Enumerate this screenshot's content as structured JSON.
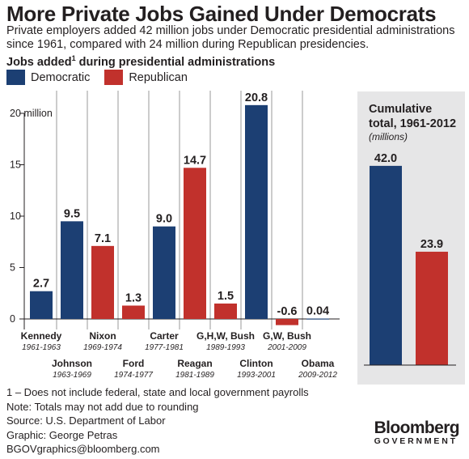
{
  "title": "More Private Jobs Gained Under Democrats",
  "subtitle": "Private employers added 42 million jobs under Democratic presidential administrations since 1961, compared with 24 million during Republican presidencies.",
  "chart_label": "Jobs added",
  "chart_label_sup": "1",
  "chart_label_suffix": " during presidential administrations",
  "legend": [
    {
      "label": "Democratic",
      "color": "#1c3f73"
    },
    {
      "label": "Republican",
      "color": "#c1312c"
    }
  ],
  "chart_data": [
    {
      "type": "bar",
      "title": "Jobs added during presidential administrations",
      "ylabel": "",
      "ylim": [
        -1,
        21
      ],
      "y_ticks": [
        {
          "value": 0,
          "label": "0"
        },
        {
          "value": 5,
          "label": "5"
        },
        {
          "value": 10,
          "label": "10"
        },
        {
          "value": 15,
          "label": "15"
        },
        {
          "value": 20,
          "label": "20 million"
        }
      ],
      "grid": "vertical separators",
      "categories": [
        "Kennedy",
        "Johnson",
        "Nixon",
        "Ford",
        "Carter",
        "Reagan",
        "G,H,W, Bush",
        "Clinton",
        "G,W, Bush",
        "Obama"
      ],
      "years": [
        "1961-1963",
        "1963-1969",
        "1969-1974",
        "1974-1977",
        "1977-1981",
        "1981-1989",
        "1989-1993",
        "1993-2001",
        "2001-2009",
        "2009-2012"
      ],
      "values": [
        2.7,
        9.5,
        7.1,
        1.3,
        9.0,
        14.7,
        1.5,
        20.8,
        -0.6,
        0.04
      ],
      "value_labels": [
        "2.7",
        "9.5",
        "7.1",
        "1.3",
        "9.0",
        "14.7",
        "1.5",
        "20.8",
        "-0.6",
        "0.04"
      ],
      "party": [
        "Democratic",
        "Democratic",
        "Republican",
        "Republican",
        "Democratic",
        "Republican",
        "Republican",
        "Democratic",
        "Republican",
        "Democratic"
      ]
    },
    {
      "type": "bar",
      "title": "Cumulative total, 1961-2012",
      "subtitle": "(millions)",
      "categories": [
        "Democratic",
        "Republican"
      ],
      "values": [
        42.0,
        23.9
      ],
      "value_labels": [
        "42.0",
        "23.9"
      ]
    }
  ],
  "panel": {
    "title_line1": "Cumulative",
    "title_line2": "total, 1961-2012",
    "subtitle": "(millions)",
    "background": "#e6e6e7"
  },
  "notes": [
    "1 – Does not include federal, state and local government payrolls",
    "Note: Totals may not add due to rounding",
    "Source: U.S. Department of Labor",
    "Graphic: George Petras",
    "BGOVgraphics@bloomberg.com"
  ],
  "brand": {
    "name": "Bloomberg",
    "sub": "GOVERNMENT"
  }
}
